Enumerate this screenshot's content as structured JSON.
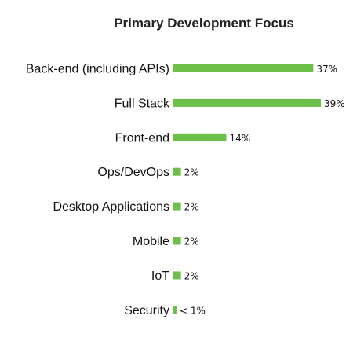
{
  "chart_data": {
    "type": "bar",
    "orientation": "horizontal",
    "title": "Primary Development Focus",
    "categories": [
      "Back-end (including APIs)",
      "Full Stack",
      "Front-end",
      "Ops/DevOps",
      "Desktop Applications",
      "Mobile",
      "IoT",
      "Security"
    ],
    "values": [
      37,
      39,
      14,
      2,
      2,
      2,
      2,
      1
    ],
    "value_labels": [
      "37%",
      "39%",
      "14%",
      "2%",
      "2%",
      "2%",
      "2%",
      "< 1%"
    ],
    "xlim": [
      0,
      40
    ],
    "grid": false,
    "legend": "none",
    "bar_color": "#6cc04a"
  }
}
